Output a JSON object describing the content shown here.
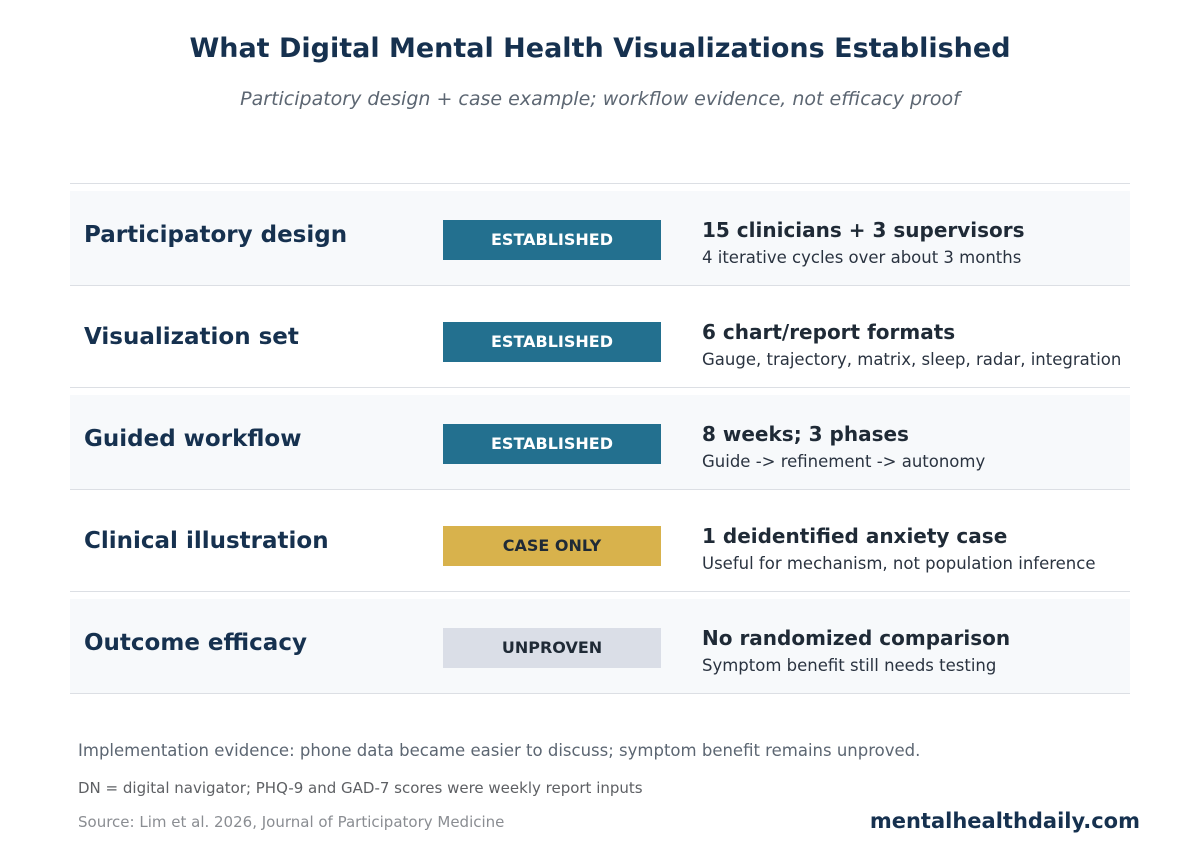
{
  "header": {
    "title": "What Digital Mental Health Visualizations Established",
    "subtitle": "Participatory design + case example; workflow evidence, not efficacy proof"
  },
  "rows": [
    {
      "label": "Participatory design",
      "status": "ESTABLISHED",
      "status_color": "#23708f",
      "metric": "15 clinicians + 3 supervisors",
      "detail": "4 iterative cycles over about 3 months"
    },
    {
      "label": "Visualization set",
      "status": "ESTABLISHED",
      "status_color": "#23708f",
      "metric": "6 chart/report formats",
      "detail": "Gauge, trajectory, matrix, sleep, radar, integration"
    },
    {
      "label": "Guided workflow",
      "status": "ESTABLISHED",
      "status_color": "#23708f",
      "metric": "8 weeks; 3 phases",
      "detail": "Guide -> refinement -> autonomy"
    },
    {
      "label": "Clinical illustration",
      "status": "CASE ONLY",
      "status_color": "#d8b24c",
      "metric": "1 deidentified anxiety case",
      "detail": "Useful for mechanism, not population inference"
    },
    {
      "label": "Outcome efficacy",
      "status": "UNPROVEN",
      "status_color": "#dadee7",
      "metric": "No randomized comparison",
      "detail": "Symptom benefit still needs testing"
    }
  ],
  "footer": {
    "implementation_note": "Implementation evidence: phone data became easier to discuss; symptom benefit remains unproved.",
    "abbreviations": "DN = digital navigator; PHQ-9 and GAD-7 scores were weekly report inputs",
    "source": "Source: Lim et al. 2026, Journal of Participatory Medicine",
    "brand": "mentalhealthdaily.com"
  }
}
